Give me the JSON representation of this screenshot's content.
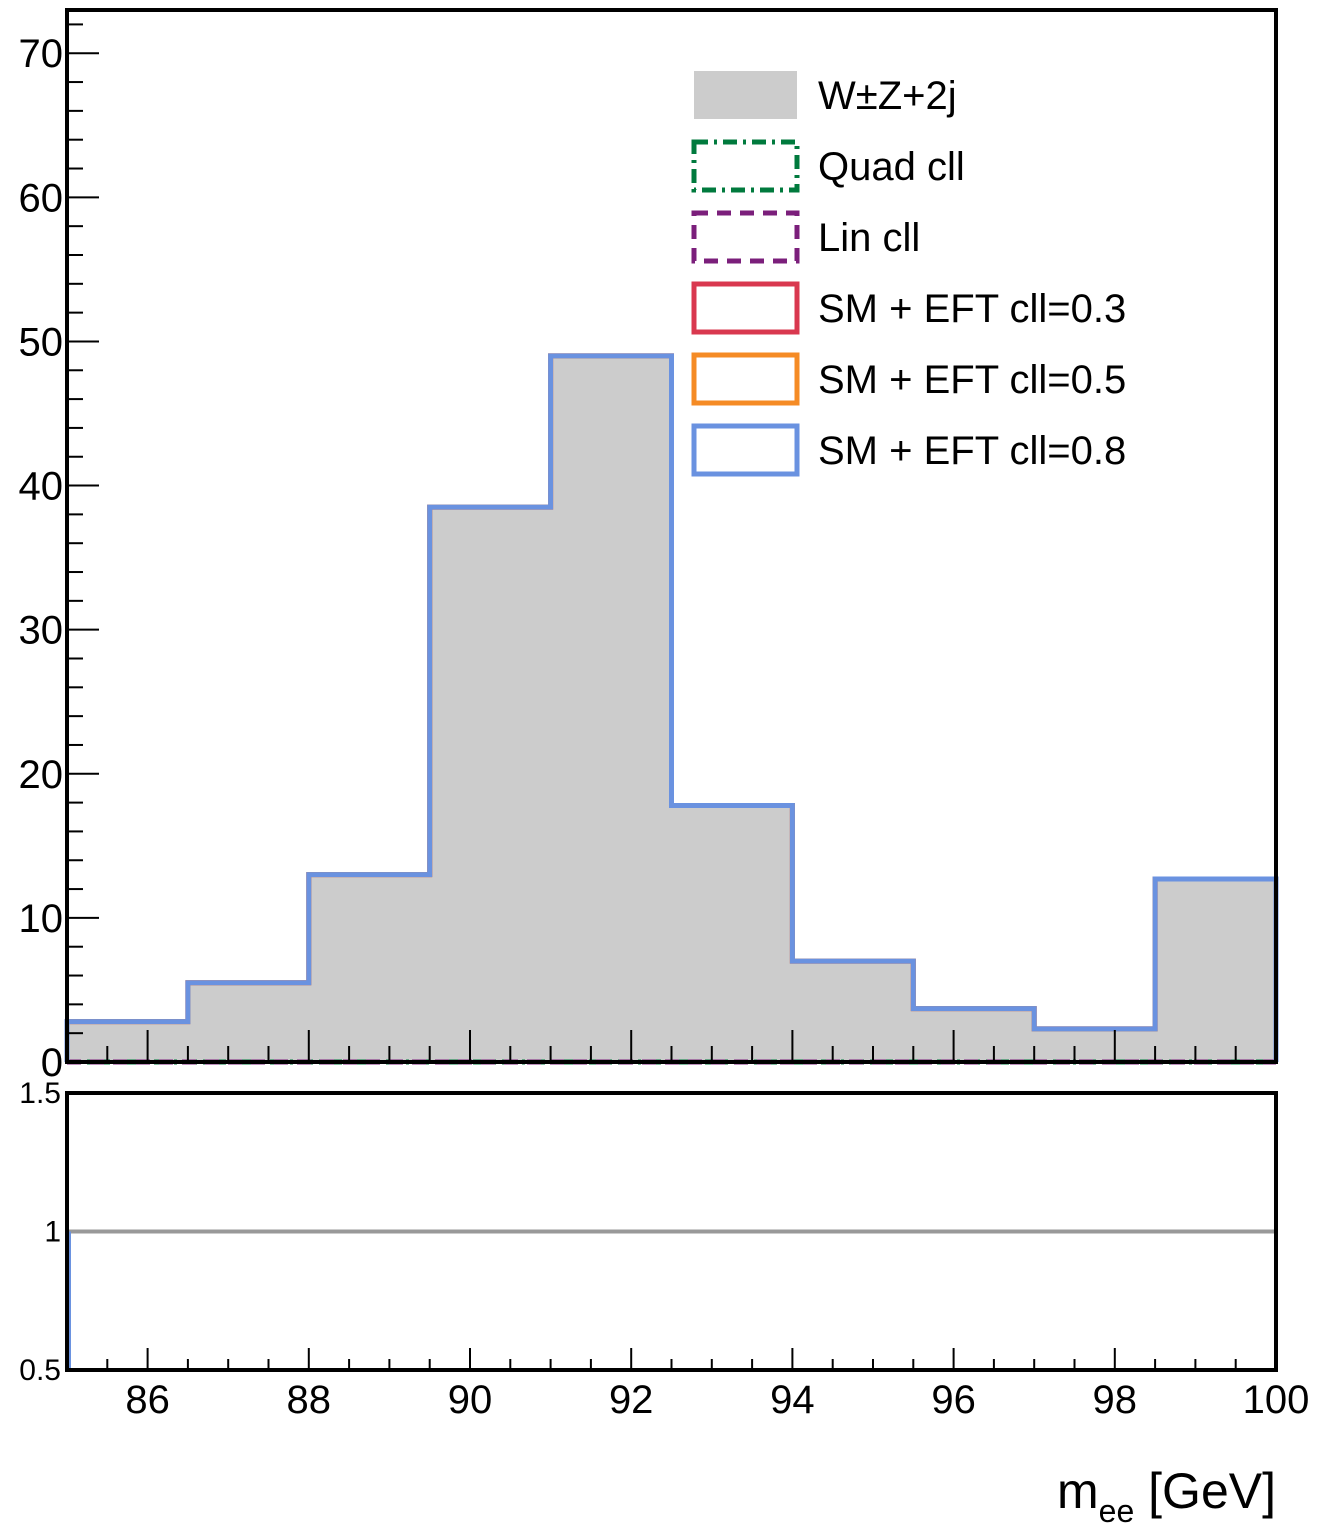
{
  "chart_data": [
    {
      "type": "histogram",
      "title": "",
      "xlim": [
        85,
        100
      ],
      "ylim": [
        0,
        73
      ],
      "y_ticks": [
        "0",
        "10",
        "20",
        "30",
        "40",
        "50",
        "60",
        "70"
      ],
      "bin_edges": [
        85,
        86.5,
        88,
        89.5,
        91,
        92.5,
        94,
        95.5,
        97,
        98.5,
        100
      ],
      "legend_position": "top-right",
      "series": [
        {
          "name": "W±Z+2j",
          "style": "filled",
          "color": "#cccccc",
          "values": [
            2.8,
            5.5,
            13.0,
            38.5,
            49.0,
            17.8,
            7.0,
            3.7,
            2.3,
            12.7
          ]
        },
        {
          "name": "Quad cll",
          "style": "dash-dot",
          "color": "#007a3d",
          "values": [
            0,
            0,
            0,
            0,
            0,
            0,
            0,
            0,
            0,
            0
          ]
        },
        {
          "name": "Lin cll",
          "style": "dashed",
          "color": "#7b1f7b",
          "values": [
            0,
            0,
            0,
            0,
            0,
            0,
            0,
            0,
            0,
            0
          ]
        },
        {
          "name": "SM + EFT cll=0.3",
          "style": "solid",
          "color": "#d9384f",
          "values": [
            2.8,
            5.5,
            13.0,
            38.5,
            49.0,
            17.8,
            7.0,
            3.7,
            2.3,
            12.7
          ]
        },
        {
          "name": "SM + EFT cll=0.5",
          "style": "solid",
          "color": "#f58b25",
          "values": [
            2.8,
            5.5,
            13.0,
            38.5,
            49.0,
            17.8,
            7.0,
            3.7,
            2.3,
            12.7
          ]
        },
        {
          "name": "SM + EFT cll=0.8",
          "style": "solid",
          "color": "#6a92e0",
          "values": [
            2.8,
            5.5,
            13.0,
            38.5,
            49.0,
            17.8,
            7.0,
            3.7,
            2.3,
            12.7
          ]
        }
      ]
    },
    {
      "type": "line",
      "title": "",
      "xlim": [
        85,
        100
      ],
      "ylim": [
        0.5,
        1.5
      ],
      "x_ticks": [
        "86",
        "88",
        "90",
        "92",
        "94",
        "96",
        "98",
        "100"
      ],
      "y_ticks": [
        "0.5",
        "1",
        "1.5"
      ],
      "xlabel_main": "m",
      "xlabel_sub": "ee",
      "xlabel_unit": " [GeV]",
      "reference_line": {
        "y": 1,
        "color": "#999999"
      },
      "series": [
        {
          "name": "SM + EFT cll=0.8",
          "color": "#6a92e0",
          "x": [
            85,
            85
          ],
          "y": [
            0.5,
            1
          ]
        }
      ]
    }
  ]
}
